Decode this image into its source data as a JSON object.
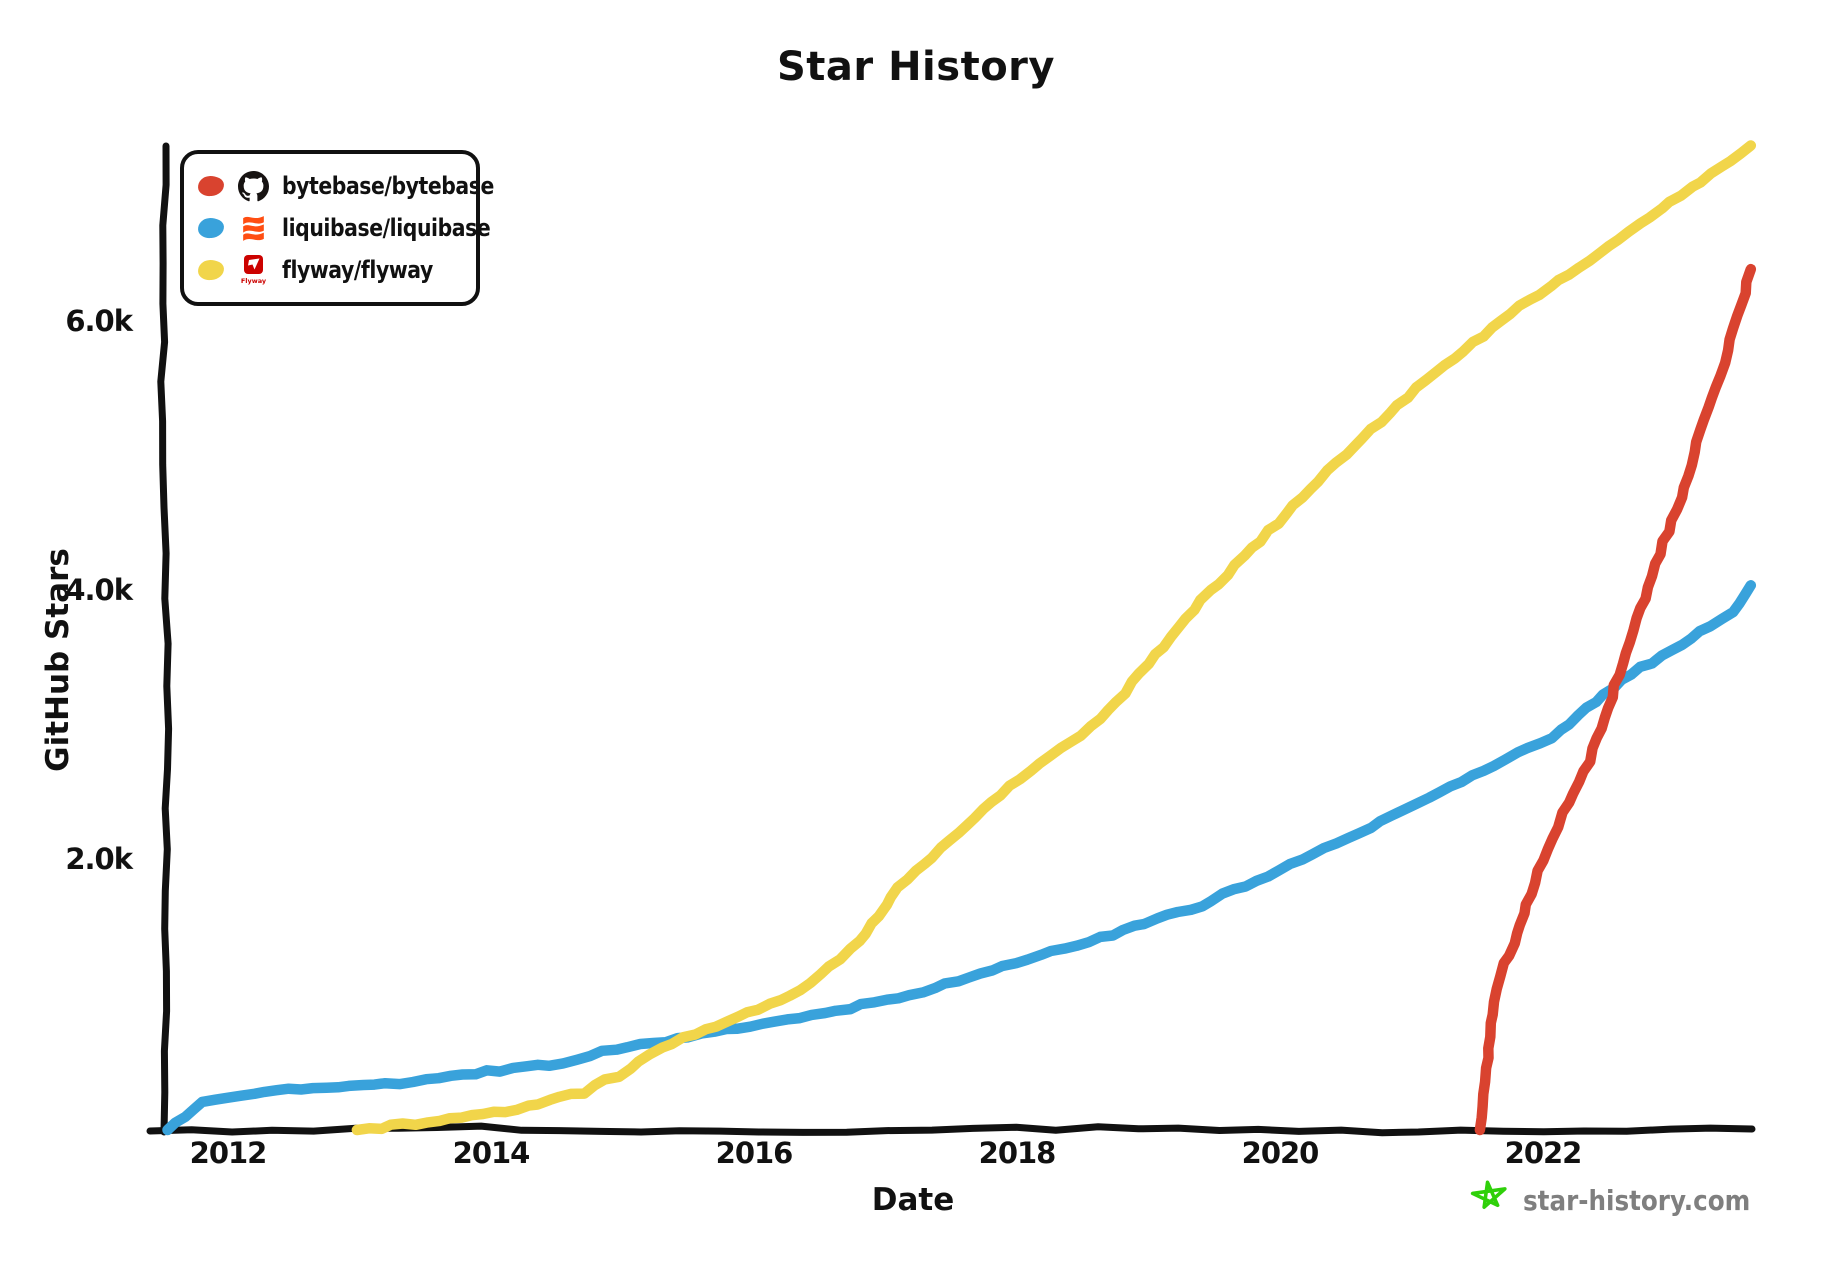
{
  "chart": {
    "title": "Star History",
    "x_axis_label": "Date",
    "y_axis_label": "GitHub Stars",
    "watermark_text": "star-history.com"
  },
  "legend": {
    "items": [
      {
        "label": "bytebase/bytebase",
        "color": "#d9432f",
        "icon": "github-octocat-icon"
      },
      {
        "label": "liquibase/liquibase",
        "color": "#39a2db",
        "icon": "liquibase-logo-icon"
      },
      {
        "label": "flyway/flyway",
        "color": "#f1d54a",
        "icon": "flyway-logo-icon",
        "icon_text": "Flyway"
      }
    ]
  },
  "axes": {
    "x": {
      "ticks": [
        "2012",
        "2014",
        "2016",
        "2018",
        "2020",
        "2022"
      ],
      "tick_years": [
        2012,
        2014,
        2016,
        2018,
        2020,
        2022
      ]
    },
    "y": {
      "ticks": [
        "2.0k",
        "4.0k",
        "6.0k"
      ],
      "tick_values": [
        2000,
        4000,
        6000
      ]
    }
  },
  "colors": {
    "axis": "#111111",
    "bytebase_red": "#d9432f",
    "liquibase_blue": "#39a2db",
    "flyway_yellow": "#f1d54a",
    "liquibase_icon_orange": "#ff4e12",
    "flyway_icon_red": "#cc0200",
    "watermark_gray": "#7f7f7f",
    "watermark_star_green": "#2fd00a"
  },
  "chart_data": {
    "type": "line",
    "title": "Star History",
    "xlabel": "Date",
    "ylabel": "GitHub Stars",
    "x_unit": "decimal_year",
    "xlim": [
      2011.4,
      2023.8
    ],
    "ylim": [
      0,
      7400
    ],
    "grid": false,
    "legend_position": "top-left",
    "style": "hand-drawn-xkcd",
    "series": [
      {
        "name": "bytebase/bytebase",
        "color": "#d9432f",
        "points": [
          [
            2021.52,
            0
          ],
          [
            2021.57,
            450
          ],
          [
            2021.62,
            950
          ],
          [
            2021.7,
            1230
          ],
          [
            2021.78,
            1380
          ],
          [
            2021.85,
            1600
          ],
          [
            2022.0,
            2000
          ],
          [
            2022.15,
            2350
          ],
          [
            2022.35,
            2750
          ],
          [
            2022.55,
            3300
          ],
          [
            2022.72,
            3800
          ],
          [
            2022.85,
            4200
          ],
          [
            2023.05,
            4700
          ],
          [
            2023.2,
            5200
          ],
          [
            2023.38,
            5700
          ],
          [
            2023.48,
            6050
          ],
          [
            2023.58,
            6400
          ]
        ]
      },
      {
        "name": "liquibase/liquibase",
        "color": "#39a2db",
        "points": [
          [
            2011.54,
            0
          ],
          [
            2011.8,
            200
          ],
          [
            2012.2,
            270
          ],
          [
            2012.55,
            310
          ],
          [
            2013.3,
            350
          ],
          [
            2013.7,
            410
          ],
          [
            2014.07,
            440
          ],
          [
            2014.55,
            500
          ],
          [
            2014.85,
            580
          ],
          [
            2015.6,
            710
          ],
          [
            2016.35,
            840
          ],
          [
            2017.1,
            980
          ],
          [
            2017.9,
            1210
          ],
          [
            2018.64,
            1430
          ],
          [
            2019.4,
            1670
          ],
          [
            2020.16,
            2010
          ],
          [
            2020.77,
            2300
          ],
          [
            2021.3,
            2550
          ],
          [
            2022.06,
            2920
          ],
          [
            2022.6,
            3340
          ],
          [
            2023.2,
            3710
          ],
          [
            2023.45,
            3850
          ],
          [
            2023.58,
            4050
          ]
        ]
      },
      {
        "name": "flyway/flyway",
        "color": "#f1d54a",
        "points": [
          [
            2012.98,
            0
          ],
          [
            2013.6,
            70
          ],
          [
            2014.2,
            150
          ],
          [
            2014.7,
            280
          ],
          [
            2015.05,
            450
          ],
          [
            2015.3,
            620
          ],
          [
            2015.8,
            800
          ],
          [
            2016.35,
            1040
          ],
          [
            2016.8,
            1400
          ],
          [
            2017.1,
            1800
          ],
          [
            2017.87,
            2500
          ],
          [
            2018.64,
            3050
          ],
          [
            2019.4,
            3940
          ],
          [
            2020.3,
            4830
          ],
          [
            2020.9,
            5400
          ],
          [
            2021.68,
            6020
          ],
          [
            2022.35,
            6460
          ],
          [
            2023.05,
            6950
          ],
          [
            2023.58,
            7320
          ]
        ]
      }
    ]
  }
}
